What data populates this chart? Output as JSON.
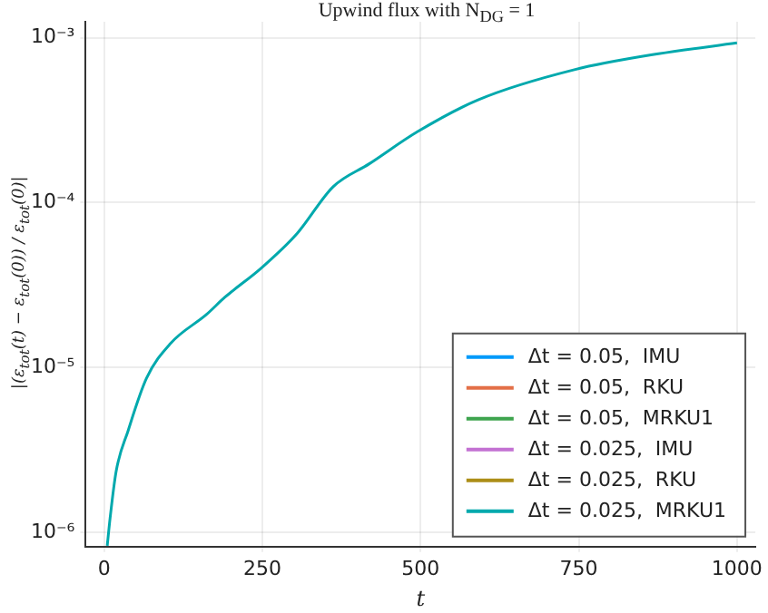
{
  "chart_data": {
    "type": "line",
    "title": "Upwind flux with N$_{DG}$ = 1",
    "xlabel": "t",
    "ylabel": "|(ε$_{tot}$(t) − ε$_{tot}$(0)) / ε$_{tot}$(0)|",
    "x": [
      5,
      9.5,
      19,
      38,
      67,
      105,
      162,
      191,
      248,
      305,
      362,
      419,
      495,
      591,
      743,
      876,
      1000
    ],
    "series": [
      {
        "name": "Δt = 0.05,  IMU",
        "color": "#009afa",
        "values": [
          null,
          null,
          null,
          null,
          null,
          null,
          null,
          null,
          null,
          null,
          null,
          null,
          null,
          null,
          null,
          null,
          null
        ]
      },
      {
        "name": "Δt = 0.05,  RKU",
        "color": "#e36f47",
        "values": [
          null,
          null,
          null,
          null,
          null,
          null,
          null,
          null,
          null,
          null,
          null,
          null,
          null,
          null,
          null,
          null,
          null
        ]
      },
      {
        "name": "Δt = 0.05,  MRKU1",
        "color": "#3ea44e",
        "values": [
          null,
          null,
          null,
          null,
          null,
          null,
          null,
          null,
          null,
          null,
          null,
          null,
          null,
          null,
          null,
          null,
          null
        ]
      },
      {
        "name": "Δt = 0.025,  IMU",
        "color": "#c371d2",
        "values": [
          null,
          null,
          null,
          null,
          null,
          null,
          null,
          null,
          null,
          null,
          null,
          null,
          null,
          null,
          null,
          null,
          null
        ]
      },
      {
        "name": "Δt = 0.025,  RKU",
        "color": "#ac8e18",
        "values": [
          null,
          null,
          null,
          null,
          null,
          null,
          null,
          null,
          null,
          null,
          null,
          null,
          null,
          null,
          null,
          null,
          null
        ]
      },
      {
        "name": "Δt = 0.025,  MRKU1",
        "color": "#00a9ad",
        "values": [
          8.3e-07,
          1.22e-06,
          2.34e-06,
          4.14e-06,
          8.6e-06,
          1.4e-05,
          2.1e-05,
          2.67e-05,
          4e-05,
          6.5e-05,
          0.000125,
          0.000172,
          0.000269,
          0.00042,
          0.00064,
          0.0008,
          0.00093
        ]
      }
    ],
    "xlim": [
      -29,
      1029
    ],
    "xticks": [
      0,
      250,
      500,
      750,
      1000
    ],
    "ylim": [
      8.2e-07,
      0.00125
    ],
    "yticks": [
      {
        "value": 1e-06,
        "label": "10⁻⁶"
      },
      {
        "value": 1e-05,
        "label": "10⁻⁵"
      },
      {
        "value": 0.0001,
        "label": "10⁻⁴"
      },
      {
        "value": 0.001,
        "label": "10⁻³"
      }
    ],
    "log": "y",
    "grid": true,
    "legend": "bottom right",
    "marker": "none",
    "line_style": "solid"
  }
}
